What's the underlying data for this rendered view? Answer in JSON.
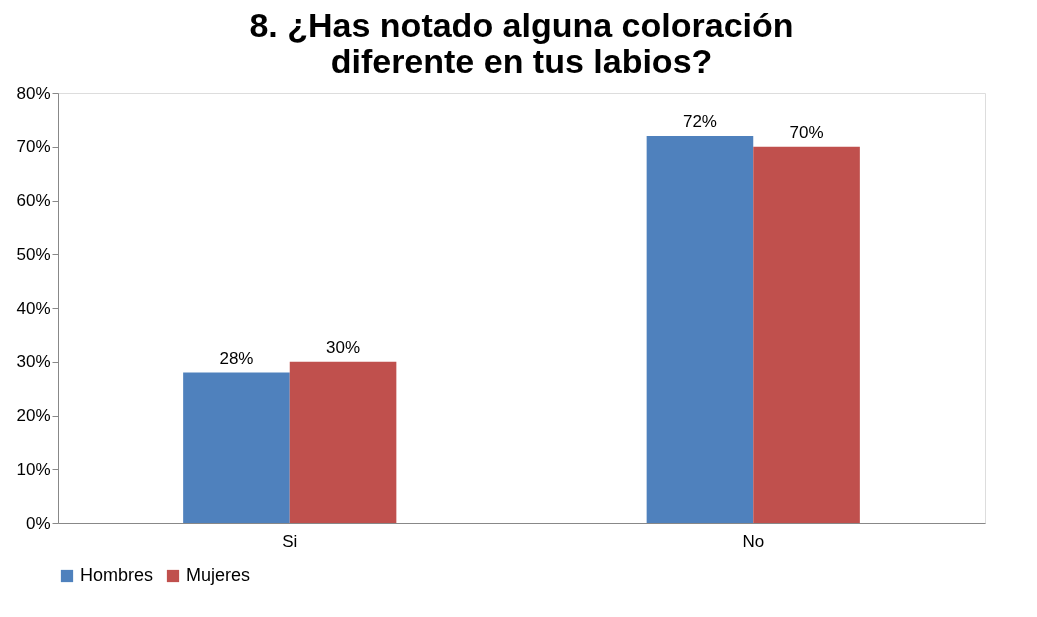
{
  "chart_data": {
    "type": "bar",
    "title": "8. ¿Has notado alguna coloración diferente en tus labios?",
    "categories": [
      "Si",
      "No"
    ],
    "series": [
      {
        "name": "Hombres",
        "color": "#4f81bd",
        "values": [
          28,
          72
        ],
        "value_labels": [
          "28%",
          "72%"
        ]
      },
      {
        "name": "Mujeres",
        "color": "#c0504d",
        "values": [
          30,
          70
        ],
        "value_labels": [
          "30%",
          "70%"
        ]
      }
    ],
    "ylim": [
      0,
      80
    ],
    "yticks": [
      {
        "value": 0,
        "label": "0%"
      },
      {
        "value": 10,
        "label": "10%"
      },
      {
        "value": 20,
        "label": "20%"
      },
      {
        "value": 30,
        "label": "30%"
      },
      {
        "value": 40,
        "label": "40%"
      },
      {
        "value": 50,
        "label": "50%"
      },
      {
        "value": 60,
        "label": "60%"
      },
      {
        "value": 70,
        "label": "70%"
      },
      {
        "value": 80,
        "label": "80%"
      }
    ],
    "grid": false,
    "legend": "bottom"
  }
}
